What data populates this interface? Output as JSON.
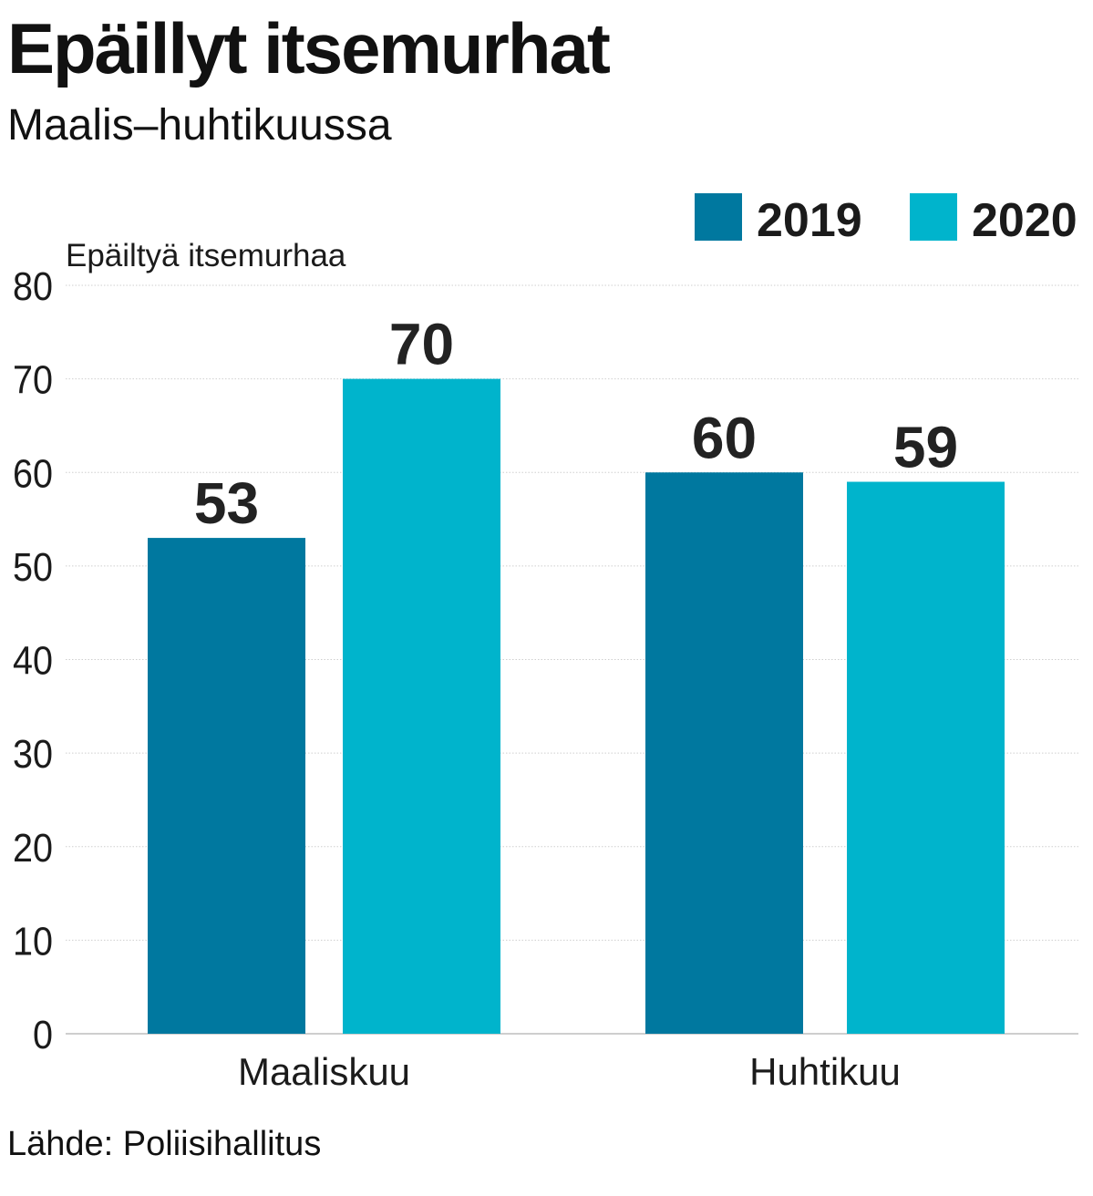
{
  "title": "Epäillyt itsemurhat",
  "subtitle": "Maalis–huhtikuussa",
  "source": "Lähde: Poliisihallitus",
  "chart_data": {
    "type": "bar",
    "categories": [
      "Maaliskuu",
      "Huhtikuu"
    ],
    "series": [
      {
        "name": "2019",
        "color": "#00789f",
        "values": [
          53,
          60
        ]
      },
      {
        "name": "2020",
        "color": "#00b4cc",
        "values": [
          70,
          59
        ]
      }
    ],
    "ylabel": "Epäiltyä itsemurhaa",
    "ylim": [
      0,
      80
    ],
    "yticks": [
      0,
      10,
      20,
      30,
      40,
      50,
      60,
      70,
      80
    ],
    "grid": true,
    "legend": "top-right",
    "data_labels": true
  }
}
